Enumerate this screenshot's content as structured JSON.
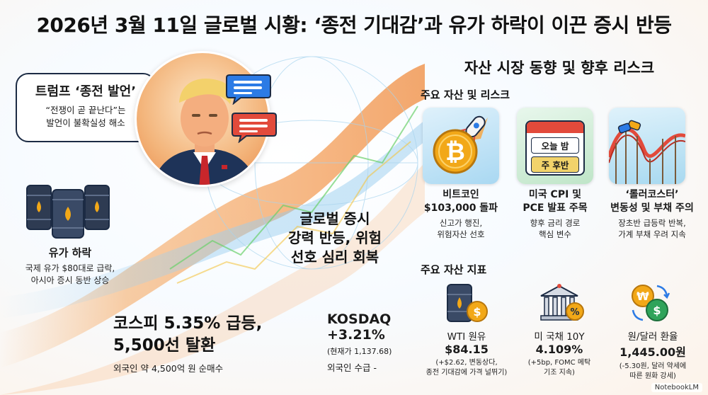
{
  "title": "2026년 3월 11일 글로벌 시황: ‘종전 기대감’과 유가 하락이 이끈 증시 반등",
  "bubble": {
    "title": "트럼프 ‘종전 발언’",
    "line1": "“전쟁이 곧 끝난다”는",
    "line2": "발언이 불확실성 해소"
  },
  "oil": {
    "title": "유가 하락",
    "line1": "국제 유가 $80대로 급락,",
    "line2": "아시아 증시 동반 상승"
  },
  "global": {
    "line1": "글로벌 증시",
    "line2": "강력 반등, 위험",
    "line3": "선호 심리 회복"
  },
  "kospi": {
    "line1": "코스피 5.35% 급등,",
    "line2": "5,500선 탈환",
    "sub": "외국인 약 4,500억 원 순매수"
  },
  "kosdaq": {
    "name": "KOSDAQ",
    "change": "+3.21%",
    "current": "(현재가 1,137.68)",
    "foreign": "외국인 수급 -"
  },
  "right": {
    "heading": "자산 시장 동향 및 향후 리스크",
    "assets_heading": "주요 자산 및 리스크",
    "indicators_heading": "주요 자산 지표"
  },
  "cards": [
    {
      "icon": "bitcoin-rocket-icon",
      "title1": "비트코인",
      "title2": "$103,000 돌파",
      "text1": "신고가 행진,",
      "text2": "위험자산 선호"
    },
    {
      "icon": "calendar-icon",
      "badge1": "오늘 밤",
      "badge2": "주 후반",
      "title1": "미국 CPI 및",
      "title2": "PCE 발표 주목",
      "text1": "향후 금리 경로",
      "text2": "핵심 변수"
    },
    {
      "icon": "roller-coaster-icon",
      "title1": "‘롤러코스터’",
      "title2": "변동성 및 부채 주의",
      "text1": "장초반 급등락 반복,",
      "text2": "가계 부채 우려 지속"
    }
  ],
  "indicators": [
    {
      "icon": "oil-barrel-dollar-icon",
      "name": "WTI 원유",
      "value": "$84.15",
      "note1": "(+$2.62, 변동상다,",
      "note2": "종전 기대감에 가격 널뛰기)"
    },
    {
      "icon": "treasury-building-icon",
      "name": "미 국채 10Y",
      "value": "4.109%",
      "note1": "(+5bp, FOMC 메탁",
      "note2": "기조 지속)"
    },
    {
      "icon": "currency-exchange-icon",
      "name": "원/달러 환율",
      "value": "1,445.00원",
      "note1": "(-5.30원, 달러 약세에",
      "note2": "따른 원화 강세)"
    }
  ],
  "watermark": "NotebookLM",
  "colors": {
    "accent_orange": "#f08a3c",
    "navy": "#1c2b44",
    "gold": "#f2a818",
    "red": "#e24a3b"
  }
}
